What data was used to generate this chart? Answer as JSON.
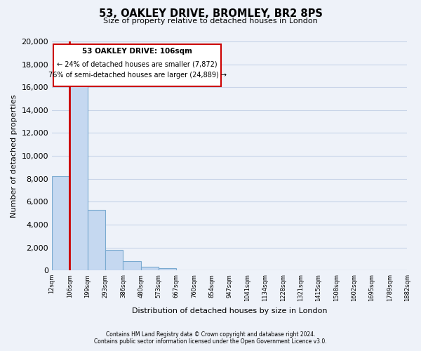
{
  "title": "53, OAKLEY DRIVE, BROMLEY, BR2 8PS",
  "subtitle": "Size of property relative to detached houses in London",
  "xlabel": "Distribution of detached houses by size in London",
  "ylabel": "Number of detached properties",
  "bin_labels": [
    "12sqm",
    "106sqm",
    "199sqm",
    "293sqm",
    "386sqm",
    "480sqm",
    "573sqm",
    "667sqm",
    "760sqm",
    "854sqm",
    "947sqm",
    "1041sqm",
    "1134sqm",
    "1228sqm",
    "1321sqm",
    "1415sqm",
    "1508sqm",
    "1602sqm",
    "1695sqm",
    "1789sqm",
    "1882sqm"
  ],
  "bar_heights": [
    8200,
    16600,
    5300,
    1800,
    800,
    300,
    200,
    0,
    0,
    0,
    0,
    0,
    0,
    0,
    0,
    0,
    0,
    0,
    0,
    0
  ],
  "bar_color": "#c5d8f0",
  "bar_edge_color": "#7aaad0",
  "red_line_color": "#cc0000",
  "ylim": [
    0,
    20000
  ],
  "yticks": [
    0,
    2000,
    4000,
    6000,
    8000,
    10000,
    12000,
    14000,
    16000,
    18000,
    20000
  ],
  "annotation_title": "53 OAKLEY DRIVE: 106sqm",
  "annotation_line1": "← 24% of detached houses are smaller (7,872)",
  "annotation_line2": "76% of semi-detached houses are larger (24,889) →",
  "annotation_box_color": "#ffffff",
  "annotation_box_edge_color": "#cc0000",
  "footer_line1": "Contains HM Land Registry data © Crown copyright and database right 2024.",
  "footer_line2": "Contains public sector information licensed under the Open Government Licence v3.0.",
  "grid_color": "#c8d4e8",
  "bg_color": "#eef2f9"
}
